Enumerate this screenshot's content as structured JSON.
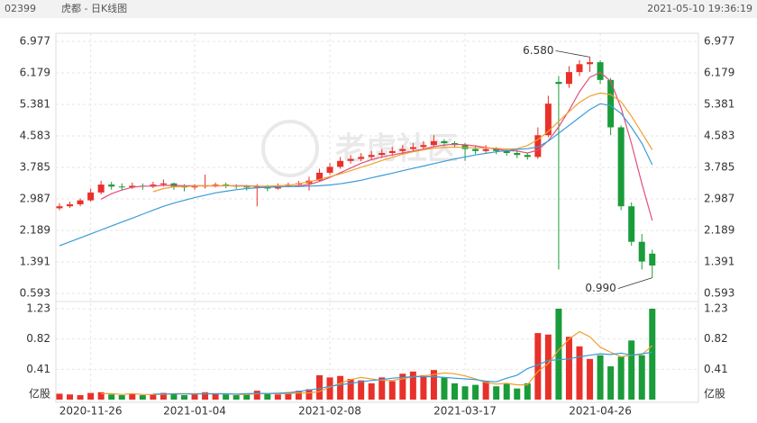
{
  "header": {
    "code": "02399",
    "name": "虎都 - 日K线图",
    "timestamp": "2021-05-10 19:36:19"
  },
  "watermark": "老虎社区",
  "chart_data": {
    "type": "candlestick",
    "categories": [
      null,
      null,
      null,
      "2020-11-26",
      null,
      null,
      null,
      null,
      null,
      null,
      null,
      null,
      null,
      "2021-01-04",
      null,
      null,
      null,
      null,
      null,
      null,
      null,
      null,
      null,
      null,
      null,
      null,
      "2021-02-08",
      null,
      null,
      null,
      null,
      null,
      null,
      null,
      null,
      null,
      null,
      null,
      null,
      "2021-03-17",
      null,
      null,
      null,
      null,
      null,
      null,
      null,
      null,
      null,
      null,
      null,
      null,
      "2021-04-26",
      null,
      null,
      null,
      null,
      null
    ],
    "candles": [
      [
        2.75,
        2.88,
        2.7,
        2.8
      ],
      [
        2.8,
        2.92,
        2.76,
        2.85
      ],
      [
        2.85,
        3.0,
        2.8,
        2.95
      ],
      [
        2.95,
        3.25,
        2.92,
        3.15
      ],
      [
        3.15,
        3.45,
        3.1,
        3.35
      ],
      [
        3.35,
        3.42,
        3.22,
        3.3
      ],
      [
        3.3,
        3.38,
        3.2,
        3.28
      ],
      [
        3.28,
        3.4,
        3.24,
        3.32
      ],
      [
        3.32,
        3.38,
        3.22,
        3.3
      ],
      [
        3.3,
        3.42,
        3.26,
        3.35
      ],
      [
        3.35,
        3.48,
        3.3,
        3.38
      ],
      [
        3.38,
        3.4,
        3.22,
        3.3
      ],
      [
        3.3,
        3.36,
        3.18,
        3.28
      ],
      [
        3.28,
        3.36,
        3.22,
        3.3
      ],
      [
        3.3,
        3.6,
        3.25,
        3.33
      ],
      [
        3.33,
        3.4,
        3.28,
        3.35
      ],
      [
        3.35,
        3.4,
        3.26,
        3.32
      ],
      [
        3.32,
        3.36,
        3.24,
        3.3
      ],
      [
        3.3,
        3.34,
        3.2,
        3.28
      ],
      [
        3.28,
        3.36,
        2.8,
        3.3
      ],
      [
        3.3,
        3.34,
        3.18,
        3.25
      ],
      [
        3.25,
        3.38,
        3.22,
        3.32
      ],
      [
        3.32,
        3.4,
        3.28,
        3.35
      ],
      [
        3.35,
        3.44,
        3.3,
        3.38
      ],
      [
        3.38,
        3.55,
        3.2,
        3.45
      ],
      [
        3.45,
        3.75,
        3.42,
        3.65
      ],
      [
        3.65,
        3.9,
        3.6,
        3.8
      ],
      [
        3.8,
        4.05,
        3.75,
        3.95
      ],
      [
        3.95,
        4.1,
        3.88,
        4.0
      ],
      [
        4.0,
        4.15,
        3.94,
        4.05
      ],
      [
        4.05,
        4.2,
        3.98,
        4.1
      ],
      [
        4.1,
        4.25,
        4.02,
        4.15
      ],
      [
        4.15,
        4.3,
        4.08,
        4.2
      ],
      [
        4.2,
        4.35,
        4.12,
        4.25
      ],
      [
        4.25,
        4.4,
        4.18,
        4.3
      ],
      [
        4.3,
        4.45,
        4.22,
        4.35
      ],
      [
        4.35,
        4.6,
        4.3,
        4.45
      ],
      [
        4.45,
        4.5,
        4.32,
        4.4
      ],
      [
        4.4,
        4.45,
        4.28,
        4.35
      ],
      [
        4.35,
        4.4,
        3.95,
        4.25
      ],
      [
        4.25,
        4.32,
        4.12,
        4.2
      ],
      [
        4.2,
        4.35,
        4.15,
        4.25
      ],
      [
        4.25,
        4.3,
        4.12,
        4.2
      ],
      [
        4.2,
        4.26,
        4.08,
        4.15
      ],
      [
        4.15,
        4.22,
        4.02,
        4.1
      ],
      [
        4.1,
        4.15,
        3.98,
        4.05
      ],
      [
        4.05,
        4.8,
        4.0,
        4.6
      ],
      [
        4.6,
        5.6,
        4.55,
        5.4
      ],
      [
        5.95,
        6.1,
        1.2,
        5.9
      ],
      [
        5.9,
        6.35,
        5.8,
        6.2
      ],
      [
        6.2,
        6.5,
        6.1,
        6.4
      ],
      [
        6.4,
        6.58,
        6.2,
        6.45
      ],
      [
        6.45,
        6.5,
        5.9,
        6.0
      ],
      [
        6.0,
        6.05,
        4.6,
        4.8
      ],
      [
        4.8,
        4.85,
        2.7,
        2.8
      ],
      [
        2.8,
        2.9,
        1.8,
        1.9
      ],
      [
        1.9,
        2.1,
        1.2,
        1.4
      ],
      [
        1.6,
        1.7,
        0.99,
        1.3
      ]
    ],
    "up_color": "#e8312a",
    "down_color": "#1a9c3a",
    "ma_series": [
      {
        "color": "#e0507a",
        "values": [
          null,
          null,
          null,
          null,
          2.98,
          3.12,
          3.21,
          3.28,
          3.31,
          3.31,
          3.33,
          3.33,
          3.32,
          3.32,
          3.32,
          3.31,
          3.32,
          3.32,
          3.32,
          3.31,
          3.29,
          3.29,
          3.3,
          3.32,
          3.35,
          3.43,
          3.53,
          3.65,
          3.77,
          3.89,
          3.98,
          4.05,
          4.1,
          4.15,
          4.2,
          4.25,
          4.31,
          4.35,
          4.37,
          4.36,
          4.33,
          4.29,
          4.25,
          4.21,
          4.2,
          4.15,
          4.22,
          4.46,
          4.81,
          5.23,
          5.7,
          6.07,
          6.19,
          5.97,
          5.29,
          4.39,
          3.38,
          2.44
        ]
      },
      {
        "color": "#f0a030",
        "values": [
          null,
          null,
          null,
          null,
          null,
          null,
          null,
          null,
          null,
          3.17,
          3.25,
          3.29,
          3.3,
          3.31,
          3.32,
          3.32,
          3.32,
          3.31,
          3.31,
          3.31,
          3.31,
          3.32,
          3.33,
          3.37,
          3.42,
          3.48,
          3.55,
          3.62,
          3.7,
          3.79,
          3.87,
          3.96,
          4.04,
          4.12,
          4.18,
          4.23,
          4.27,
          4.29,
          4.3,
          4.29,
          4.28,
          4.28,
          4.27,
          4.25,
          4.26,
          4.34,
          4.49,
          4.7,
          4.95,
          5.2,
          5.43,
          5.59,
          5.67,
          5.63,
          5.45,
          5.08,
          4.66,
          4.23
        ]
      },
      {
        "color": "#3a9bd8",
        "values": [
          1.8,
          1.9,
          2.0,
          2.1,
          2.2,
          2.3,
          2.4,
          2.5,
          2.6,
          2.7,
          2.8,
          2.88,
          2.95,
          3.02,
          3.08,
          3.14,
          3.18,
          3.22,
          3.25,
          3.27,
          3.28,
          3.29,
          3.3,
          3.3,
          3.31,
          3.32,
          3.34,
          3.37,
          3.41,
          3.46,
          3.52,
          3.58,
          3.64,
          3.7,
          3.76,
          3.82,
          3.88,
          3.94,
          4.0,
          4.05,
          4.1,
          4.14,
          4.18,
          4.21,
          4.24,
          4.26,
          4.3,
          4.45,
          4.65,
          4.85,
          5.05,
          5.25,
          5.4,
          5.35,
          5.15,
          4.8,
          4.4,
          3.85
        ]
      }
    ],
    "ylim": [
      0.593,
      6.977
    ],
    "yticks": [
      6.977,
      6.179,
      5.381,
      4.583,
      3.785,
      2.987,
      2.189,
      1.391,
      0.593
    ],
    "annotations": [
      {
        "value": 6.58,
        "label": "6.580",
        "index": 51
      },
      {
        "value": 0.99,
        "label": "0.990",
        "index": 57
      }
    ],
    "volume": [
      0.08,
      0.07,
      0.06,
      0.09,
      0.1,
      0.07,
      0.06,
      0.08,
      0.06,
      0.07,
      0.09,
      0.08,
      0.06,
      0.07,
      0.1,
      0.08,
      0.07,
      0.06,
      0.07,
      0.12,
      0.08,
      0.07,
      0.1,
      0.12,
      0.14,
      0.33,
      0.3,
      0.32,
      0.28,
      0.26,
      0.22,
      0.3,
      0.25,
      0.35,
      0.38,
      0.33,
      0.4,
      0.3,
      0.22,
      0.18,
      0.2,
      0.25,
      0.18,
      0.22,
      0.15,
      0.22,
      0.9,
      0.88,
      1.23,
      0.85,
      0.72,
      0.55,
      0.6,
      0.45,
      0.58,
      0.8,
      0.6,
      1.23
    ],
    "volume_ma_series": [
      {
        "color": "#f0a030",
        "values": [
          null,
          null,
          null,
          null,
          0.08,
          0.08,
          0.07,
          0.08,
          0.07,
          0.07,
          0.07,
          0.08,
          0.08,
          0.08,
          0.08,
          0.08,
          0.08,
          0.07,
          0.07,
          0.08,
          0.08,
          0.08,
          0.08,
          0.09,
          0.09,
          0.11,
          0.17,
          0.22,
          0.27,
          0.3,
          0.28,
          0.26,
          0.26,
          0.28,
          0.31,
          0.32,
          0.34,
          0.36,
          0.35,
          0.32,
          0.28,
          0.23,
          0.21,
          0.22,
          0.2,
          0.2,
          0.38,
          0.49,
          0.67,
          0.82,
          0.92,
          0.85,
          0.71,
          0.64,
          0.58,
          0.6,
          0.61,
          0.73
        ]
      },
      {
        "color": "#3a9bd8",
        "values": [
          null,
          null,
          null,
          null,
          null,
          null,
          null,
          null,
          null,
          0.075,
          0.075,
          0.077,
          0.075,
          0.076,
          0.078,
          0.078,
          0.078,
          0.076,
          0.082,
          0.084,
          0.083,
          0.087,
          0.093,
          0.11,
          0.13,
          0.15,
          0.18,
          0.2,
          0.22,
          0.24,
          0.26,
          0.27,
          0.29,
          0.3,
          0.31,
          0.31,
          0.31,
          0.3,
          0.29,
          0.28,
          0.27,
          0.25,
          0.24,
          0.29,
          0.33,
          0.42,
          0.47,
          0.53,
          0.54,
          0.55,
          0.58,
          0.6,
          0.62,
          0.61,
          0.63,
          0.6,
          0.62,
          0.64
        ]
      }
    ],
    "vlim": [
      0,
      1.23
    ],
    "vticks": [
      1.23,
      0.82,
      0.41
    ],
    "volume_unit": "亿股",
    "grid": true
  }
}
